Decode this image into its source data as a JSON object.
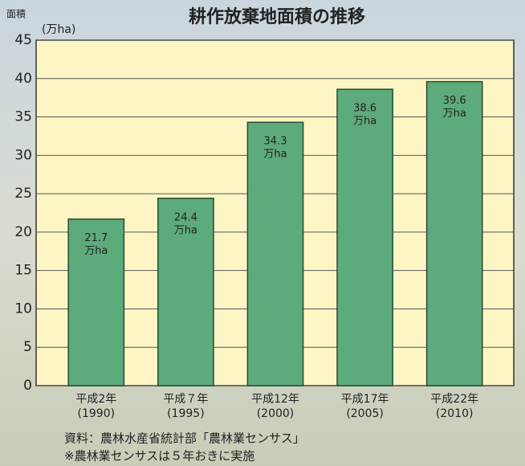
{
  "chart_data": {
    "type": "bar",
    "title": "耕作放棄地面積の推移",
    "y_axis_label": "面積",
    "y_unit_label": "(万ha)",
    "categories": [
      "平成2年",
      "平成７年",
      "平成12年",
      "平成17年",
      "平成22年"
    ],
    "category_years": [
      "(1990)",
      "(1995)",
      "(2000)",
      "(2005)",
      "(2010)"
    ],
    "values": [
      21.7,
      24.4,
      34.3,
      38.6,
      39.6
    ],
    "value_unit": "万ha",
    "color": "#5dab7c",
    "ylim": [
      0,
      45
    ],
    "yticks": [
      0,
      5,
      10,
      15,
      20,
      25,
      30,
      35,
      40,
      45
    ],
    "grid": true,
    "notes": [
      "資料：農林水産省統計部「農林業センサス」",
      "※農林業センサスは５年おきに実施"
    ]
  }
}
